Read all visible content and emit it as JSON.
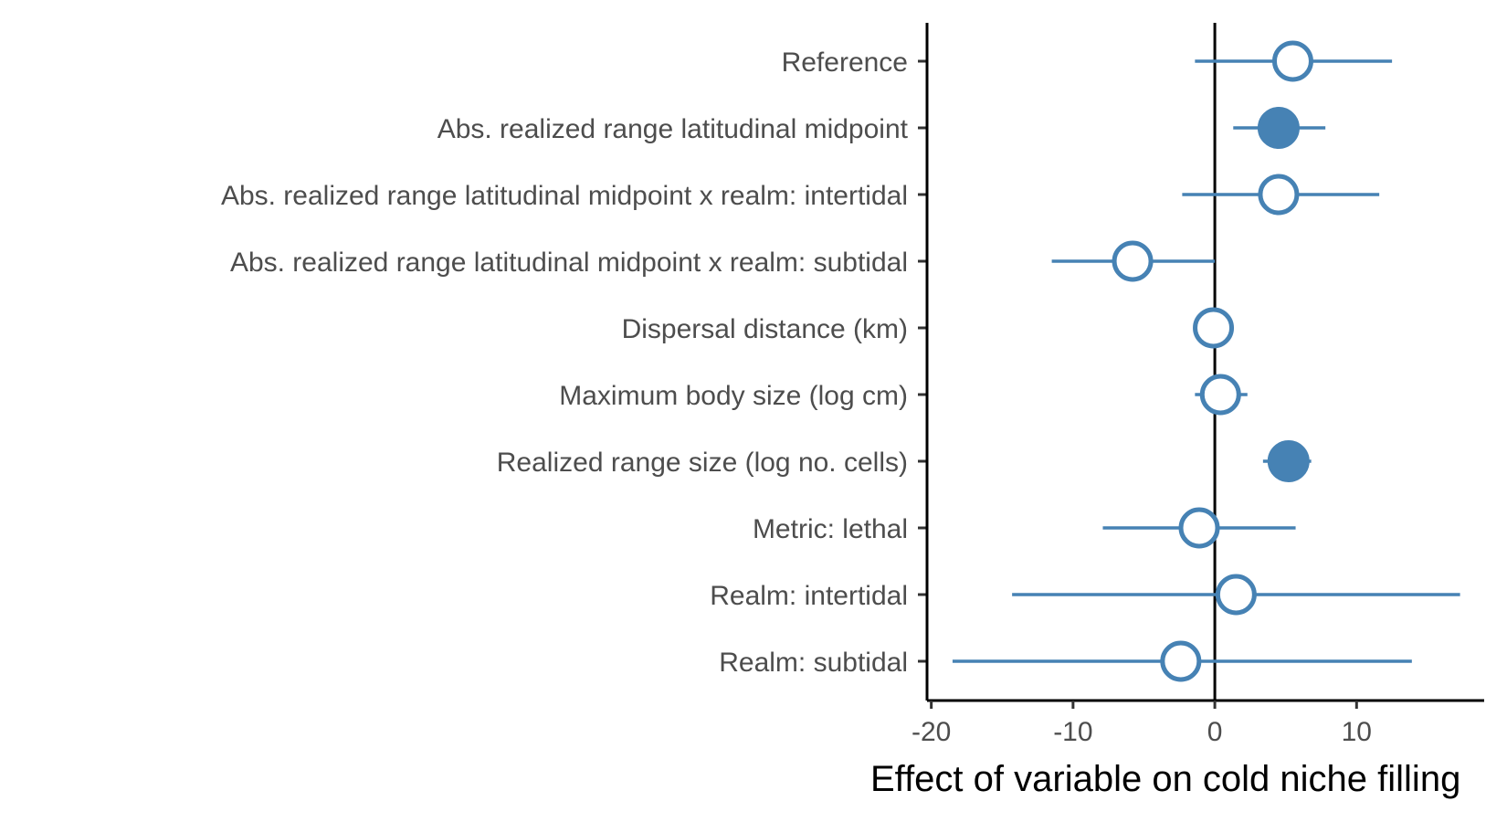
{
  "chart_data": {
    "type": "dot-whisker",
    "orientation": "horizontal",
    "xlabel": "Effect of variable on cold niche filling",
    "xlim": [
      -20.3,
      19.0
    ],
    "xticks": [
      -20,
      -10,
      0,
      10
    ],
    "xtick_labels": [
      "-20",
      "-10",
      "0",
      "10"
    ],
    "reference_line_x": 0,
    "grid": false,
    "legend": "none",
    "point_color": "#4682b4",
    "rows": [
      {
        "label": "Reference",
        "estimate": 5.5,
        "lower": -1.4,
        "upper": 12.5,
        "significant": false
      },
      {
        "label": "Abs. realized range latitudinal midpoint ",
        "estimate": 4.5,
        "lower": 1.3,
        "upper": 7.8,
        "significant": true
      },
      {
        "label": "Abs. realized range latitudinal midpoint x realm: intertidal",
        "estimate": 4.5,
        "lower": -2.3,
        "upper": 11.6,
        "significant": false
      },
      {
        "label": "Abs. realized range latitudinal midpoint x realm: subtidal",
        "estimate": -5.8,
        "lower": -11.5,
        "upper": 0.0,
        "significant": false
      },
      {
        "label": "Dispersal distance (km)",
        "estimate": -0.1,
        "lower": -0.3,
        "upper": 0.1,
        "significant": false
      },
      {
        "label": "Maximum body size (log cm)",
        "estimate": 0.4,
        "lower": -1.4,
        "upper": 2.3,
        "significant": false
      },
      {
        "label": "Realized range size (log no. cells)",
        "estimate": 5.2,
        "lower": 3.4,
        "upper": 6.8,
        "significant": true
      },
      {
        "label": "Metric: lethal",
        "estimate": -1.1,
        "lower": -7.9,
        "upper": 5.7,
        "significant": false
      },
      {
        "label": "Realm: intertidal",
        "estimate": 1.5,
        "lower": -14.3,
        "upper": 17.3,
        "significant": false
      },
      {
        "label": "Realm: subtidal",
        "estimate": -2.4,
        "lower": -18.5,
        "upper": 13.9,
        "significant": false
      }
    ]
  }
}
